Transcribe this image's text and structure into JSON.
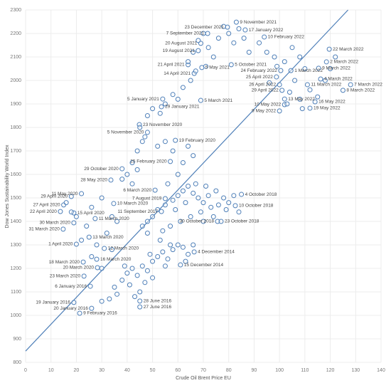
{
  "chart_data": {
    "type": "scatter",
    "x_label": "Crude Oil Brent Price EU",
    "y_label": "Dow Jones Sustainability World Index",
    "color": "#4e7fb8",
    "grid": true,
    "xlim": [
      0,
      140
    ],
    "xticks": [
      0,
      10,
      20,
      30,
      40,
      50,
      60,
      70,
      80,
      90,
      100,
      110,
      120,
      130,
      140
    ],
    "ylim": [
      800,
      2300
    ],
    "yticks": [
      800,
      900,
      1000,
      1100,
      1200,
      1300,
      1400,
      1500,
      1600,
      1700,
      1800,
      1900,
      2000,
      2100,
      2200,
      2300
    ],
    "trend_line": {
      "x": [
        0,
        127
      ],
      "values": [
        848,
        2300
      ]
    },
    "labels": [
      "9 November 2021",
      "23 December 2021",
      "17 January 2022",
      "7 September 2021",
      "10 February 2022",
      "20 August 2021",
      "19 August 2021",
      "22 March 2022",
      "2 March 2022",
      "9 March 2022",
      "21 April 2021",
      "5 May 2021",
      "5 October 2021",
      "1 March 2022",
      "24 February 2022",
      "14 April 2021",
      "25 April 2022",
      "4 March 2022",
      "7 March 2022",
      "8 March 2022",
      "26 April 2022",
      "11 March 2022",
      "29 April 2022",
      "13 May 2022",
      "16 May 2022",
      "19 May 2022",
      "10 May 2022",
      "9 May 2022",
      "5 January 2021",
      "5 March 2021",
      "29 January 2021",
      "23 November 2020",
      "5 November 2020",
      "19 February 2020",
      "25 February 2020",
      "29 October 2020",
      "28 May 2020",
      "6 March 2020",
      "11 May 2020",
      "29 April 2020",
      "7 August 2019",
      "4 October 2018",
      "27 April 2020",
      "10 March 2020",
      "10 October 2018",
      "22 April 2020",
      "15 April 2020",
      "11 September 2017",
      "11 March 2020",
      "30 March 2020",
      "30 October 2018",
      "23 October 2018",
      "31 March 2020",
      "13 March 2020",
      "1 April 2020",
      "12 March 2020",
      "4 December 2014",
      "18 March 2020",
      "16 March 2020",
      "15 December 2014",
      "20 March 2020",
      "23 March 2020",
      "6 January 2016",
      "28 June 2016",
      "19 January 2016",
      "27 June 2016",
      "20 January 2016",
      "9 February 2016",
      null,
      null,
      null,
      null,
      null,
      null,
      null,
      null,
      null,
      null,
      null,
      null,
      null,
      null,
      null,
      null,
      null,
      null,
      null,
      null,
      null,
      null,
      null,
      null,
      null,
      null,
      null,
      null,
      null,
      null,
      null,
      null,
      null,
      null,
      null,
      null,
      null,
      null,
      null,
      null,
      null,
      null,
      null,
      null,
      null,
      null,
      null,
      null,
      null,
      null,
      null,
      null,
      null,
      null,
      null,
      null,
      null,
      null,
      null,
      null,
      null,
      null,
      null,
      null,
      null,
      null,
      null,
      null,
      null,
      null,
      null,
      null,
      null,
      null,
      null,
      null,
      null,
      null,
      null,
      null,
      null,
      null,
      null,
      null,
      null,
      null,
      null,
      null,
      null,
      null,
      null,
      null,
      null,
      null,
      null,
      null,
      null,
      null,
      null,
      null,
      null,
      null,
      null,
      null,
      null,
      null,
      null,
      null,
      null,
      null,
      null,
      null,
      null,
      null,
      null,
      null,
      null,
      null,
      null,
      null,
      null,
      null,
      null,
      null,
      null,
      null,
      null,
      null,
      null,
      null,
      null,
      null,
      null,
      null,
      null,
      null
    ],
    "x": [
      83,
      79.5,
      86.5,
      71.7,
      94,
      69,
      68,
      119.6,
      118.5,
      115.4,
      64,
      69.4,
      81,
      104.5,
      100.5,
      66.4,
      98.8,
      116.2,
      128,
      125,
      100,
      111,
      101,
      102,
      114,
      112,
      102,
      100,
      54,
      69,
      53.5,
      44.8,
      48,
      59,
      57,
      38,
      33.6,
      51,
      22,
      18,
      55,
      85,
      15,
      34.7,
      82.6,
      13.7,
      19,
      53.5,
      27.4,
      19,
      75.6,
      77,
      14.8,
      25,
      20,
      31,
      66.4,
      22.7,
      28,
      61,
      28.3,
      23,
      25.5,
      45,
      19,
      45,
      26,
      21.3,
      35,
      38,
      40,
      42,
      44,
      46,
      48,
      50,
      52,
      54,
      56,
      58,
      60,
      62,
      64,
      47,
      45,
      43,
      50,
      55,
      57,
      53,
      49,
      41,
      36,
      33,
      30,
      39,
      63,
      66,
      46,
      48,
      50,
      52,
      55,
      58,
      60,
      62,
      64,
      66,
      68,
      70,
      72,
      75,
      78,
      80,
      82,
      73,
      69,
      65,
      61,
      57,
      54,
      59,
      63,
      67,
      71,
      76,
      79,
      84,
      74,
      70,
      56,
      60,
      62,
      58,
      64,
      66,
      55,
      52,
      48,
      40,
      42,
      44,
      46,
      42,
      38,
      45,
      48,
      50,
      55,
      58,
      62,
      65,
      64,
      66,
      68,
      70,
      72,
      74,
      76,
      78,
      80,
      82,
      84,
      86,
      88,
      71,
      67,
      60,
      53,
      47,
      44,
      92,
      95,
      98,
      102,
      105,
      108,
      110,
      106,
      104,
      108,
      112,
      115,
      118,
      120,
      122,
      99,
      96,
      103,
      109,
      16,
      18,
      20,
      24,
      26,
      30,
      28,
      32,
      34,
      22,
      26,
      30,
      34,
      36
    ],
    "values": [
      2248,
      2227,
      2215,
      2200,
      2185,
      2158,
      2127,
      2133,
      2079,
      2052,
      2067,
      2055,
      2067,
      2042,
      2042,
      2030,
      2015,
      2006,
      1982,
      1958,
      1982,
      1982,
      1958,
      1921,
      1909,
      1882,
      1897,
      1870,
      1921,
      1915,
      1888,
      1812,
      1779,
      1745,
      1655,
      1624,
      1576,
      1533,
      1518,
      1506,
      1497,
      1515,
      1470,
      1476,
      1467,
      1442,
      1436,
      1442,
      1412,
      1394,
      1400,
      1400,
      1367,
      1333,
      1303,
      1285,
      1270,
      1227,
      1239,
      1215,
      1203,
      1167,
      1124,
      1061,
      1055,
      1036,
      1030,
      1009,
      1120,
      1150,
      1180,
      1200,
      1170,
      1210,
      1190,
      1230,
      1250,
      1270,
      1240,
      1280,
      1300,
      1290,
      1260,
      1140,
      1100,
      1080,
      1160,
      1210,
      1300,
      1320,
      1260,
      1130,
      1090,
      1070,
      1060,
      1210,
      1230,
      1300,
      1380,
      1400,
      1420,
      1450,
      1470,
      1490,
      1510,
      1530,
      1550,
      1520,
      1500,
      1480,
      1510,
      1530,
      1500,
      1480,
      1510,
      1460,
      1440,
      1420,
      1400,
      1380,
      1360,
      1450,
      1480,
      1560,
      1550,
      1470,
      1450,
      1440,
      1420,
      1400,
      1560,
      1600,
      1650,
      1700,
      1720,
      1680,
      1740,
      1720,
      1350,
      1600,
      1650,
      1700,
      1740,
      1560,
      1580,
      1800,
      1850,
      1880,
      1900,
      1940,
      1970,
      2000,
      2080,
      2120,
      2170,
      2200,
      2140,
      2100,
      2180,
      2230,
      2200,
      2160,
      2220,
      2180,
      2120,
      2060,
      2040,
      1920,
      1860,
      1760,
      1620,
      2160,
      2120,
      2100,
      2080,
      2140,
      2100,
      2050,
      2000,
      1950,
      1920,
      1960,
      1930,
      2000,
      2050,
      2100,
      2060,
      1990,
      1900,
      1880,
      1480,
      1440,
      1420,
      1380,
      1460,
      1500,
      1300,
      1350,
      1420,
      1320,
      1250,
      1200,
      1280,
      1400
    ]
  }
}
